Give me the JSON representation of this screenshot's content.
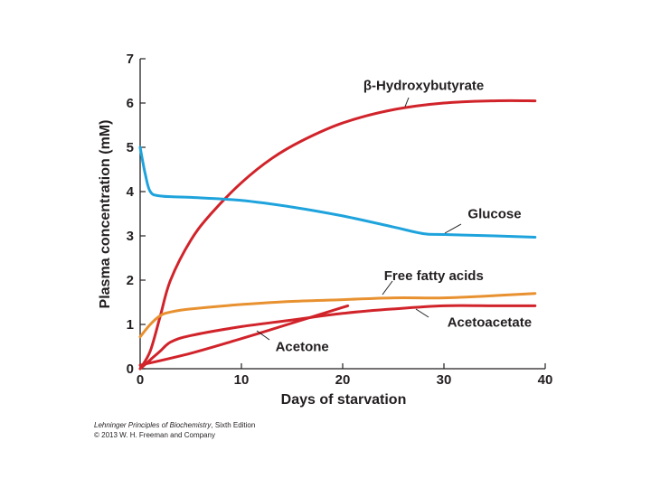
{
  "chart_data": {
    "type": "line",
    "title": "",
    "xlabel": "Days of starvation",
    "ylabel": "Plasma concentration (mM)",
    "xlim": [
      0,
      40
    ],
    "ylim": [
      0,
      7
    ],
    "xticks": [
      0,
      10,
      20,
      30,
      40
    ],
    "yticks": [
      0,
      1,
      2,
      3,
      4,
      5,
      6,
      7
    ],
    "grid": false,
    "legend": "inline labels",
    "series": [
      {
        "name": "β-Hydroxybutyrate",
        "color": "#d1232a",
        "x": [
          0,
          1,
          2,
          3,
          5,
          7,
          10,
          13,
          16,
          20,
          25,
          30,
          35,
          39
        ],
        "y": [
          0,
          0.4,
          1.2,
          2.0,
          2.9,
          3.5,
          4.2,
          4.75,
          5.15,
          5.55,
          5.85,
          6.0,
          6.05,
          6.05
        ],
        "label_x": 28,
        "label_y": 6.3
      },
      {
        "name": "Glucose",
        "color": "#1ea3dc",
        "x": [
          0,
          0.5,
          1,
          2,
          5,
          10,
          15,
          20,
          25,
          28,
          30,
          35,
          39
        ],
        "y": [
          5.0,
          4.4,
          4.0,
          3.9,
          3.87,
          3.8,
          3.65,
          3.45,
          3.2,
          3.05,
          3.03,
          3.0,
          2.97
        ],
        "label_x": 35,
        "label_y": 3.4
      },
      {
        "name": "Free fatty acids",
        "color": "#e89130",
        "x": [
          0,
          1,
          2,
          3,
          5,
          10,
          15,
          20,
          25,
          30,
          35,
          39
        ],
        "y": [
          0.72,
          1.0,
          1.2,
          1.28,
          1.35,
          1.45,
          1.52,
          1.56,
          1.6,
          1.6,
          1.65,
          1.7
        ],
        "label_x": 29,
        "label_y": 2.0
      },
      {
        "name": "Acetoacetate",
        "color": "#d1232a",
        "x": [
          0,
          1,
          2,
          3,
          5,
          10,
          15,
          20,
          25,
          30,
          35,
          39
        ],
        "y": [
          0,
          0.2,
          0.4,
          0.6,
          0.75,
          0.95,
          1.1,
          1.25,
          1.35,
          1.42,
          1.42,
          1.42
        ],
        "label_x": 34.5,
        "label_y": 0.95
      },
      {
        "name": "Acetone",
        "color": "#d1232a",
        "x": [
          0,
          5,
          10,
          15,
          20.5
        ],
        "y": [
          0.08,
          0.35,
          0.68,
          1.03,
          1.42
        ],
        "label_x": 16,
        "label_y": 0.4
      }
    ]
  },
  "credit": {
    "book_title": "Lehninger Principles of Biochemistry",
    "edition": ", Sixth Edition",
    "copyright": "© 2013 W. H. Freeman and Company"
  }
}
